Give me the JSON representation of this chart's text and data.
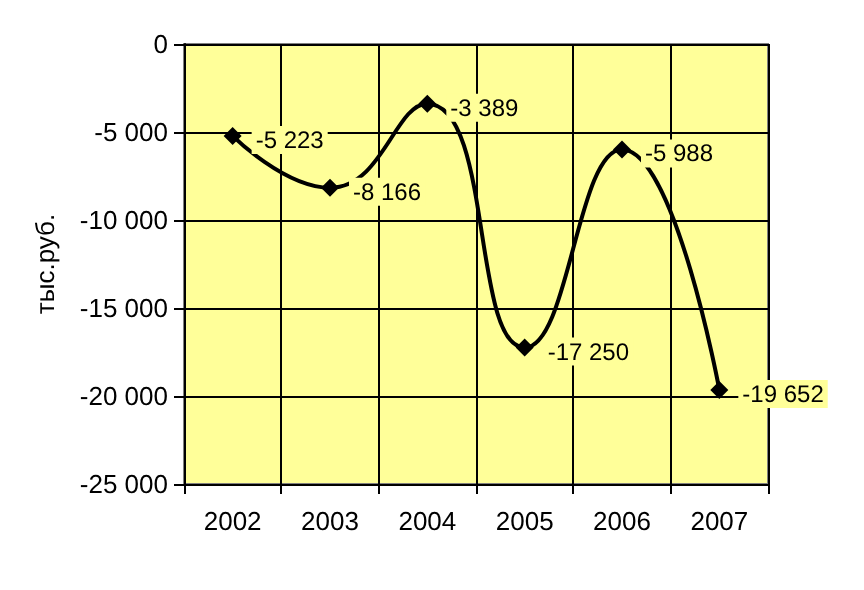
{
  "chart_data": {
    "type": "line",
    "ylabel": "тыс.руб.",
    "categories": [
      "2002",
      "2003",
      "2004",
      "2005",
      "2006",
      "2007"
    ],
    "series": [
      {
        "color": "#000000",
        "values": [
          -5223,
          -8166,
          -3389,
          -17250,
          -5988,
          -19652
        ],
        "value_labels": [
          "-5 223",
          "-8 166",
          "-3 389",
          "-17 250",
          "-5 988",
          "-19 652"
        ]
      }
    ],
    "ylim": [
      -25000,
      0
    ],
    "yticks": [
      {
        "value": -25000,
        "label": "-25 000"
      },
      {
        "value": -20000,
        "label": "-20 000"
      },
      {
        "value": -15000,
        "label": "-15 000"
      },
      {
        "value": -10000,
        "label": "-10 000"
      },
      {
        "value": -5000,
        "label": "-5 000"
      },
      {
        "value": 0,
        "label": "0"
      }
    ],
    "grid": true,
    "marker": "diamond",
    "line_style": "solid"
  }
}
